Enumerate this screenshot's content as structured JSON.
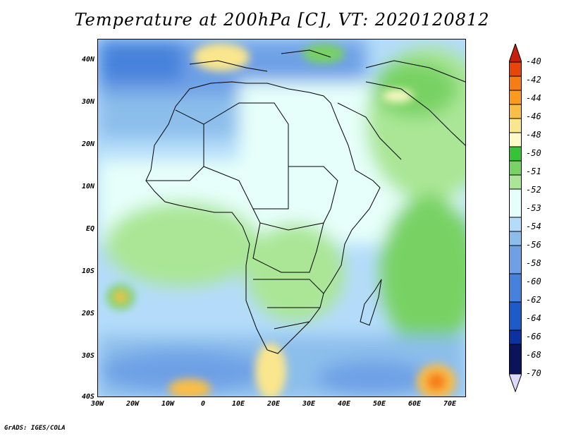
{
  "title": "Temperature at 200hPa [C], VT: 2020120812",
  "credit": "GrADS: IGES/COLA",
  "lat_labels": [
    "40N",
    "30N",
    "20N",
    "10N",
    "EQ",
    "10S",
    "20S",
    "30S",
    "40S"
  ],
  "lon_labels": [
    "30W",
    "20W",
    "10W",
    "0",
    "10E",
    "20E",
    "30E",
    "40E",
    "50E",
    "60E",
    "70E"
  ],
  "colorbar": {
    "labels": [
      "-40",
      "-42",
      "-44",
      "-46",
      "-48",
      "-50",
      "-51",
      "-52",
      "-53",
      "-54",
      "-56",
      "-58",
      "-60",
      "-62",
      "-64",
      "-66",
      "-68",
      "-70"
    ],
    "colors": [
      "#c81e0a",
      "#e6460a",
      "#f57d14",
      "#fa9b1e",
      "#fabe46",
      "#fae68c",
      "#fffac8",
      "#37c337",
      "#78d264",
      "#aae696",
      "#e6fffa",
      "#b4dcfa",
      "#8cbeeb",
      "#6ea0e6",
      "#4682dc",
      "#1e5ac8",
      "#0a32a0",
      "#0a145a",
      "#dcdcfa"
    ]
  }
}
